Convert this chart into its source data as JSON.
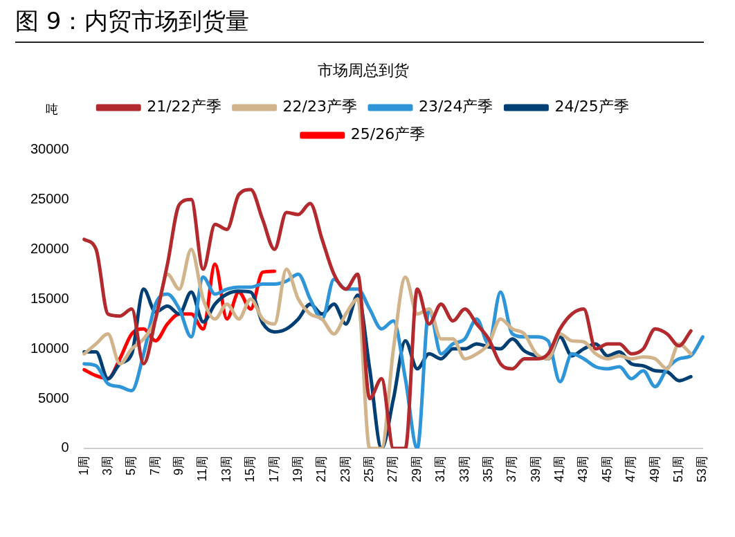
{
  "chart_data": {
    "type": "line",
    "title": "图 9：内贸市场到货量",
    "subtitle": "市场周总到货",
    "ylabel": "吨",
    "categories": [
      "1周",
      null,
      "3周",
      null,
      "5周",
      null,
      "7周",
      null,
      "9周",
      null,
      "11周",
      null,
      "13周",
      null,
      "15周",
      null,
      "17周",
      null,
      "19周",
      null,
      "21周",
      null,
      "23周",
      null,
      "25周",
      null,
      "27周",
      null,
      "29周",
      null,
      "31周",
      null,
      "33周",
      null,
      "35周",
      null,
      "37周",
      null,
      "39周",
      null,
      "41周",
      null,
      "43周",
      null,
      "45周",
      null,
      "47周",
      null,
      "49周",
      null,
      "51周",
      null,
      "53周"
    ],
    "series": [
      {
        "name": "21/22产季",
        "color": "#b22a2e",
        "values": [
          21000,
          20000,
          13500,
          13300,
          14000,
          8500,
          13000,
          18500,
          24500,
          25000,
          18000,
          22500,
          22000,
          25500,
          26000,
          23000,
          20000,
          23700,
          23500,
          24600,
          21000,
          17500,
          16000,
          17500,
          5000,
          7000,
          0,
          0,
          16000,
          12500,
          14500,
          12800,
          14000,
          12500,
          11000,
          8500,
          8000,
          9000,
          9000,
          9500,
          12000,
          13500,
          14000,
          10000,
          10500,
          10500,
          9500,
          10000,
          12000,
          11500,
          10300,
          11800,
          null
        ]
      },
      {
        "name": "22/23产季",
        "color": "#d2b48c",
        "values": [
          9500,
          10500,
          11500,
          8500,
          10000,
          11000,
          13000,
          17500,
          16000,
          20000,
          15000,
          13000,
          14500,
          13000,
          15000,
          13000,
          12500,
          18000,
          15000,
          13500,
          13000,
          11500,
          13500,
          15000,
          0,
          0,
          10000,
          17200,
          13500,
          14000,
          11000,
          11000,
          9000,
          9500,
          10500,
          13000,
          12000,
          11500,
          9500,
          9000,
          11500,
          10800,
          10700,
          9500,
          9000,
          9300,
          9000,
          9200,
          9000,
          8000,
          10500,
          9500,
          null
        ]
      },
      {
        "name": "23/24产季",
        "color": "#2e96d8",
        "values": [
          8500,
          8300,
          6500,
          6200,
          5800,
          9500,
          14500,
          15500,
          14000,
          11200,
          17200,
          15500,
          16000,
          16200,
          16200,
          16500,
          16500,
          16800,
          17500,
          15000,
          13000,
          17000,
          16000,
          16000,
          14000,
          12000,
          12800,
          7000,
          0,
          14000,
          9500,
          10500,
          11000,
          13000,
          10500,
          15700,
          11500,
          11200,
          11200,
          10800,
          6700,
          9500,
          9000,
          8200,
          8000,
          8200,
          7000,
          7800,
          6200,
          8000,
          9000,
          9300,
          11200
        ]
      },
      {
        "name": "24/25产季",
        "color": "#003f73",
        "values": [
          9700,
          9700,
          7000,
          8500,
          9500,
          16000,
          13700,
          14300,
          13500,
          15700,
          12700,
          14500,
          15500,
          15800,
          15700,
          12600,
          11700,
          12000,
          13000,
          14500,
          13500,
          14500,
          12500,
          15400,
          8000,
          0,
          5000,
          10800,
          8000,
          9500,
          9000,
          10000,
          10000,
          10500,
          10200,
          10000,
          11000,
          9800,
          9300,
          9000,
          11200,
          9300,
          10000,
          10500,
          9300,
          9700,
          8500,
          8300,
          7800,
          7700,
          6800,
          7200,
          null
        ]
      },
      {
        "name": "25/26产季",
        "color": "#ff0000",
        "values": [
          7900,
          7300,
          7000,
          9000,
          11500,
          12000,
          10800,
          12500,
          13500,
          13500,
          12000,
          18500,
          13000,
          15700,
          14000,
          17700,
          17800,
          null,
          null,
          null,
          null,
          null,
          null,
          null,
          null,
          null,
          null,
          null,
          null,
          null,
          null,
          null,
          null,
          null,
          null,
          null,
          null,
          null,
          null,
          null,
          null,
          null,
          null,
          null,
          null,
          null,
          null,
          null,
          null,
          null,
          null,
          null,
          null
        ]
      }
    ],
    "ylim": [
      0,
      30000
    ],
    "yticks": [
      0,
      5000,
      10000,
      15000,
      20000,
      25000,
      30000
    ],
    "grid": false,
    "legend": "top",
    "marker": "none",
    "line_style": "solid"
  }
}
